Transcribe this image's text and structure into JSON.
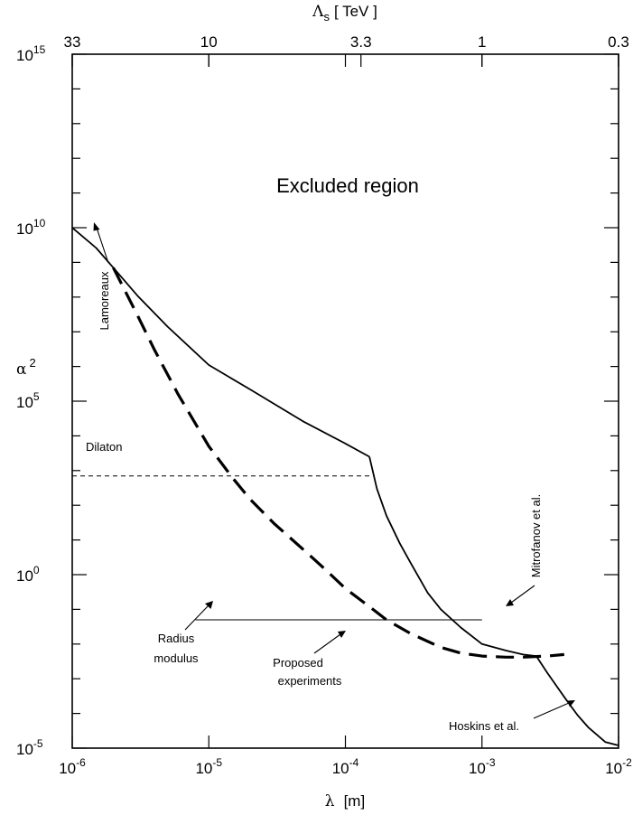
{
  "chart_data": {
    "type": "line",
    "x_scale": "log",
    "y_scale": "log",
    "xlim": [
      1e-06,
      0.01
    ],
    "ylim": [
      1e-05,
      1000000000000000.0
    ],
    "xlabel": {
      "symbol": "λ",
      "unit": "[m]"
    },
    "ylabel": {
      "symbol": "α",
      "exp": "2"
    },
    "top_axis_label": {
      "symbol": "Λ",
      "sub": "s",
      "unit": "[ TeV ]"
    },
    "x_ticks": [
      {
        "x": 1e-06,
        "base": "10",
        "exp": "-6"
      },
      {
        "x": 1e-05,
        "base": "10",
        "exp": "-5"
      },
      {
        "x": 0.0001,
        "base": "10",
        "exp": "-4"
      },
      {
        "x": 0.001,
        "base": "10",
        "exp": "-3"
      },
      {
        "x": 0.01,
        "base": "10",
        "exp": "-2"
      }
    ],
    "y_ticks": [
      {
        "y": 1e-05,
        "base": "10",
        "exp": "-5"
      },
      {
        "y": 1.0,
        "base": "10",
        "exp": "0"
      },
      {
        "y": 100000.0,
        "base": "10",
        "exp": "5"
      },
      {
        "y": 10000000000.0,
        "base": "10",
        "exp": "10"
      },
      {
        "y": 1000000000000000.0,
        "base": "10",
        "exp": "15"
      }
    ],
    "top_ticks": [
      {
        "x": 1e-06,
        "label": "33"
      },
      {
        "x": 1e-05,
        "label": "10"
      },
      {
        "x": 0.00013,
        "label": "3.3"
      },
      {
        "x": 0.001,
        "label": "1"
      },
      {
        "x": 0.01,
        "label": "0.3"
      }
    ],
    "series": [
      {
        "style": "solid",
        "x": [
          1e-06,
          1.5e-06,
          2e-06,
          3e-06,
          5e-06,
          1e-05,
          2e-05,
          5e-05,
          0.0001,
          0.00015
        ],
        "y": [
          10000000000.0,
          2600000000.0,
          700000000.0,
          110000000.0,
          14000000.0,
          1100000.0,
          220000.0,
          25000.0,
          6000.0,
          2500.0
        ]
      },
      {
        "style": "solid",
        "x": [
          0.00015,
          0.00017,
          0.0002,
          0.00025,
          0.0003,
          0.0004,
          0.0005,
          0.0007,
          0.001,
          0.0015,
          0.002,
          0.0025
        ],
        "y": [
          2500.0,
          300,
          50,
          8,
          2.2,
          0.3,
          0.1,
          0.03,
          0.01,
          0.0065,
          0.005,
          0.0045
        ]
      },
      {
        "style": "solid",
        "x": [
          0.0025,
          0.003,
          0.004,
          0.005,
          0.006,
          0.008,
          0.01
        ],
        "y": [
          0.0045,
          0.0015,
          0.0003,
          9e-05,
          4e-05,
          1.5e-05,
          1.2e-05
        ]
      },
      {
        "style": "dashed",
        "name": "Proposed experiments",
        "x": [
          2e-06,
          3e-06,
          4e-06,
          6e-06,
          1e-05,
          1.5e-05,
          2e-05,
          3e-05,
          5e-05,
          7e-05,
          0.0001,
          0.00015,
          0.0002,
          0.0003,
          0.0005,
          0.0007,
          0.001,
          0.0015,
          0.002,
          0.003,
          0.004
        ],
        "y": [
          700000000.0,
          30000000.0,
          3000000.0,
          150000.0,
          5000.0,
          600,
          150,
          30,
          5,
          1.5,
          0.4,
          0.12,
          0.05,
          0.02,
          0.008,
          0.0055,
          0.0045,
          0.0042,
          0.0042,
          0.0045,
          0.005
        ]
      }
    ],
    "hlines": [
      {
        "name": "Dilaton",
        "y": 700,
        "x_from": 1e-06,
        "x_to": 0.00016,
        "style": "dashed-thin"
      },
      {
        "name": "Radius modulus",
        "y": 0.05,
        "x_from": 8e-06,
        "x_to": 0.001,
        "style": "solid-thin"
      }
    ],
    "annotations": [
      {
        "text": "Excluded region"
      },
      {
        "text": "Lamoreaux"
      },
      {
        "text": "Dilaton"
      },
      {
        "text": "Mitrofanov et al."
      },
      {
        "text": "Radius"
      },
      {
        "text": "modulus"
      },
      {
        "text": "Proposed"
      },
      {
        "text": "experiments"
      },
      {
        "text": "Hoskins et al."
      }
    ]
  }
}
